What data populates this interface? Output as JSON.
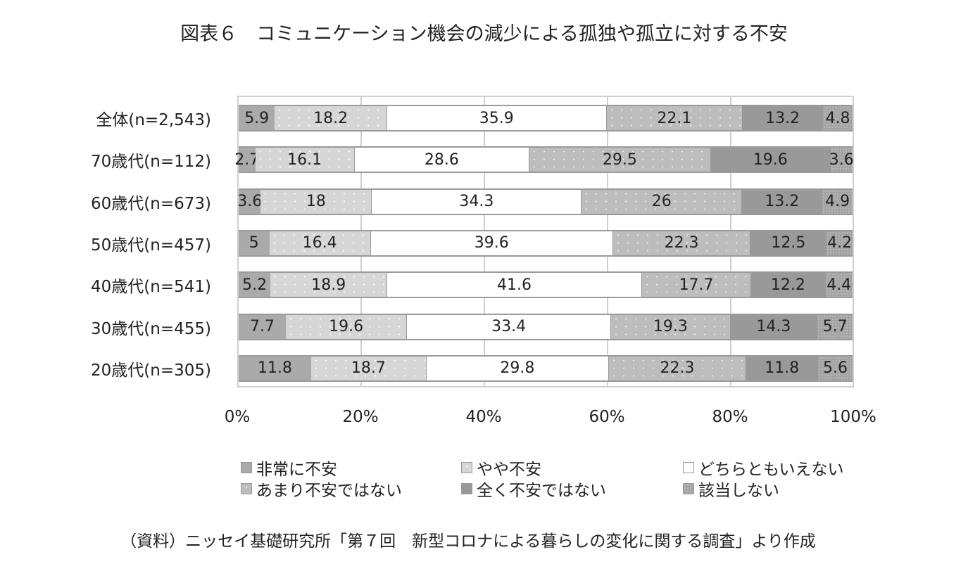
{
  "title": "図表６　コミュニケーション機会の減少による孤独や孤立に対する不安",
  "source": "（資料）ニッセイ基礎研究所「第７回　新型コロナによる暮らしの変化に関する調査」より作成",
  "xticks": [
    "0%",
    "20%",
    "40%",
    "60%",
    "80%",
    "100%"
  ],
  "legend": [
    "非常に不安",
    "やや不安",
    "どちらともいえない",
    "あまり不安ではない",
    "全く不安ではない",
    "該当しない"
  ],
  "categories": [
    "全体(n=2,543)",
    "70歳代(n=112)",
    "60歳代(n=673)",
    "50歳代(n=457)",
    "40歳代(n=541)",
    "30歳代(n=455)",
    "20歳代(n=305)"
  ],
  "rows": [
    {
      "label": "全体(n=2,543)",
      "v": [
        "5.9",
        "18.2",
        "35.9",
        "22.1",
        "13.2",
        "4.8"
      ]
    },
    {
      "label": "70歳代(n=112)",
      "v": [
        "2.7",
        "16.1",
        "28.6",
        "29.5",
        "19.6",
        "3.6"
      ]
    },
    {
      "label": "60歳代(n=673)",
      "v": [
        "3.6",
        "18",
        "34.3",
        "26",
        "13.2",
        "4.9"
      ]
    },
    {
      "label": "50歳代(n=457)",
      "v": [
        "5",
        "16.4",
        "39.6",
        "22.3",
        "12.5",
        "4.2"
      ]
    },
    {
      "label": "40歳代(n=541)",
      "v": [
        "5.2",
        "18.9",
        "41.6",
        "17.7",
        "12.2",
        "4.4"
      ]
    },
    {
      "label": "30歳代(n=455)",
      "v": [
        "7.7",
        "19.6",
        "33.4",
        "19.3",
        "14.3",
        "5.7"
      ]
    },
    {
      "label": "20歳代(n=305)",
      "v": [
        "11.8",
        "18.7",
        "29.8",
        "22.3",
        "11.8",
        "5.6"
      ]
    }
  ],
  "chart_data": {
    "type": "bar",
    "orientation": "horizontal",
    "stacked": "percent",
    "title": "図表６　コミュニケーション機会の減少による孤独や孤立に対する不安",
    "categories": [
      "全体(n=2,543)",
      "70歳代(n=112)",
      "60歳代(n=673)",
      "50歳代(n=457)",
      "40歳代(n=541)",
      "30歳代(n=455)",
      "20歳代(n=305)"
    ],
    "series": [
      {
        "name": "非常に不安",
        "values": [
          5.9,
          2.7,
          3.6,
          5,
          5.2,
          7.7,
          11.8
        ]
      },
      {
        "name": "やや不安",
        "values": [
          18.2,
          16.1,
          18,
          16.4,
          18.9,
          19.6,
          18.7
        ]
      },
      {
        "name": "どちらともいえない",
        "values": [
          35.9,
          28.6,
          34.3,
          39.6,
          41.6,
          33.4,
          29.8
        ]
      },
      {
        "name": "あまり不安ではない",
        "values": [
          22.1,
          29.5,
          26,
          22.3,
          17.7,
          19.3,
          22.3
        ]
      },
      {
        "name": "全く不安ではない",
        "values": [
          13.2,
          19.6,
          13.2,
          12.5,
          12.2,
          14.3,
          11.8
        ]
      },
      {
        "name": "該当しない",
        "values": [
          4.8,
          3.6,
          4.9,
          4.2,
          4.4,
          5.7,
          5.6
        ]
      }
    ],
    "xlabel": "",
    "ylabel": "",
    "xlim": [
      0,
      100
    ],
    "xticks": [
      "0%",
      "20%",
      "40%",
      "60%",
      "80%",
      "100%"
    ],
    "grid": true,
    "legend_position": "bottom",
    "source": "（資料）ニッセイ基礎研究所「第７回　新型コロナによる暮らしの変化に関する調査」より作成"
  }
}
